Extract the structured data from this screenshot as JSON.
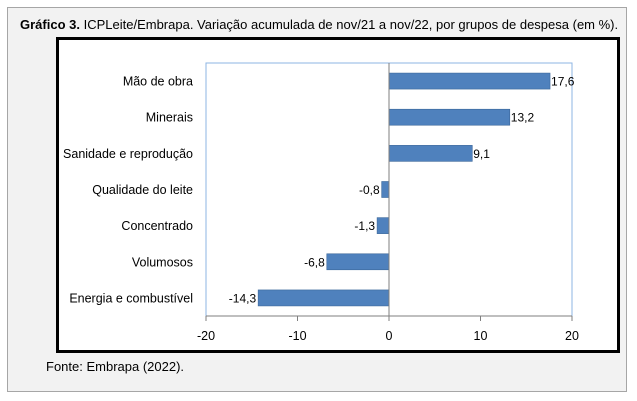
{
  "title": {
    "prefix": "Gráfico 3.",
    "text": "ICPLeite/Embrapa. Variação acumulada de nov/21 a nov/22, por grupos de despesa (em %)."
  },
  "source": "Fonte: Embrapa (2022).",
  "colors": {
    "bar": "#4f81bd",
    "plot_border": "#8eb4e3",
    "axis": "#7f7f7f"
  },
  "chart_data": {
    "type": "bar",
    "orientation": "horizontal",
    "categories": [
      "Mão de obra",
      "Minerais",
      "Sanidade e reprodução",
      "Qualidade do leite",
      "Concentrado",
      "Volumosos",
      "Energia e combustível"
    ],
    "values": [
      17.6,
      13.2,
      9.1,
      -0.8,
      -1.3,
      -6.8,
      -14.3
    ],
    "value_labels": [
      "17,6",
      "13,2",
      "9,1",
      "-0,8",
      "-1,3",
      "-6,8",
      "-14,3"
    ],
    "xlim": [
      -20,
      20
    ],
    "xticks": [
      -20,
      -10,
      0,
      10,
      20
    ],
    "xtick_labels": [
      "-20",
      "-10",
      "0",
      "10",
      "20"
    ],
    "grid": false,
    "legend": "none"
  }
}
